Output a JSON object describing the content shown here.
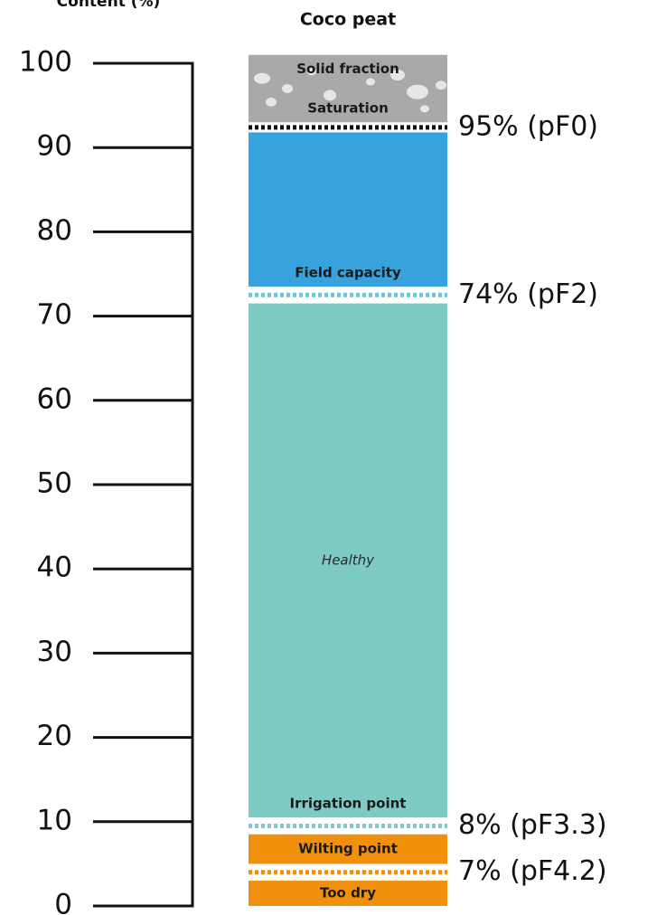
{
  "chart_data": {
    "type": "band",
    "y_label": "Content (%)",
    "title": "Coco peat",
    "ylim": [
      0,
      100
    ],
    "yticks": [
      0,
      10,
      20,
      30,
      40,
      50,
      60,
      70,
      80,
      90,
      100
    ],
    "bands": [
      {
        "from": 93,
        "to": 101,
        "color": "#a9a9a9",
        "top_label": "Solid fraction",
        "bottom_label": "Saturation",
        "note": "95% (pF0)",
        "note_line_color": "#111111"
      },
      {
        "from": 73.5,
        "to": 91.8,
        "color": "#36a3df",
        "bottom_label": "Field capacity",
        "note": "74% (pF2)",
        "note_line_color": "#6fc6dc"
      },
      {
        "from": 10.5,
        "to": 71.5,
        "color": "#7ecbc6",
        "italic_label": "Healthy",
        "bottom_label": "Irrigation point",
        "note": "8% (pF3.3)",
        "note_line_color": "#7ecbc6"
      },
      {
        "from": 5,
        "to": 8.5,
        "color": "#f0900d",
        "label": "Wilting point",
        "note": "7% (pF4.2)",
        "note_line_color": "#f0900d"
      },
      {
        "from": 0,
        "to": 3,
        "color": "#f0900d",
        "label": "Too dry"
      }
    ]
  }
}
